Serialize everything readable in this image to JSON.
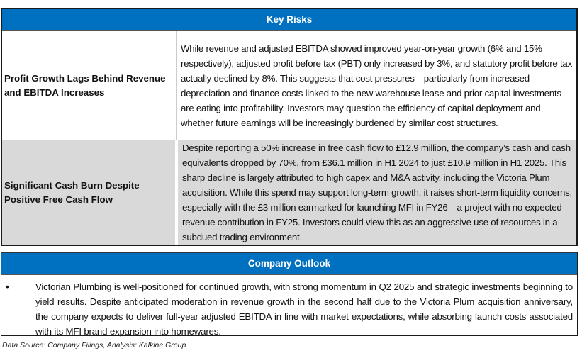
{
  "key_risks": {
    "title": "Key Risks",
    "rows": [
      {
        "label": "Profit Growth Lags Behind Revenue and EBITDA Increases",
        "text": "While revenue and adjusted EBITDA showed improved year-on-year growth (6% and 15% respectively), adjusted profit before tax (PBT) only increased by 3%, and statutory profit before tax actually declined by 8%. This suggests that cost pressures—particularly from increased depreciation and finance costs linked to the new warehouse lease and prior capital investments—are eating into profitability. Investors may question the efficiency of capital deployment and whether future earnings will be increasingly burdened by similar cost structures."
      },
      {
        "label": "Significant Cash Burn Despite Positive Free Cash Flow",
        "text": "Despite reporting a 50% increase in free cash flow to £12.9 million, the company’s cash and cash equivalents dropped by 70%, from £36.1 million in H1 2024 to just £10.9 million in H1 2025. This sharp decline is largely attributed to high capex and M&A activity, including the Victoria Plum acquisition. While this spend may support long-term growth, it raises short-term liquidity concerns, especially with the £3 million earmarked for launching MFI in FY26—a project with no expected revenue contribution in FY25. Investors could view this as an aggressive use of resources in a subdued trading environment."
      }
    ]
  },
  "outlook": {
    "title": "Company Outlook",
    "bullet": "•",
    "text": "Victorian Plumbing is well-positioned for continued growth, with strong momentum in Q2 2025 and strategic investments beginning to yield results. Despite anticipated moderation in revenue growth in the second half due to the Victoria Plum acquisition anniversary, the company expects to deliver full-year adjusted EBITDA in line with market expectations, while absorbing launch costs associated with its MFI brand expansion into homewares."
  },
  "source": "Data Source: Company Filings, Analysis: Kalkine Group",
  "colors": {
    "header": "#0070C0",
    "shaded_row": "#D9D9D9"
  }
}
